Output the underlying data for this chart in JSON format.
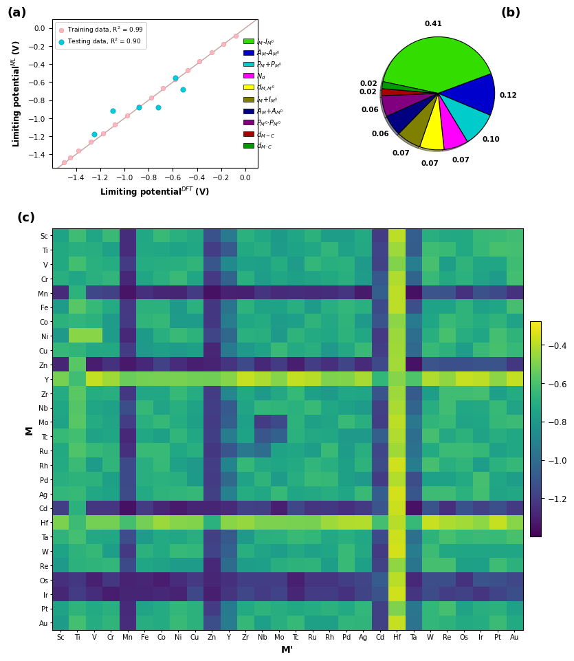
{
  "scatter_train_x": [
    -1.5,
    -1.45,
    -1.38,
    -1.28,
    -1.18,
    -1.08,
    -0.98,
    -0.88,
    -0.78,
    -0.68,
    -0.58,
    -0.48,
    -0.38,
    -0.28,
    -0.18,
    -0.08
  ],
  "scatter_train_y": [
    -1.49,
    -1.44,
    -1.36,
    -1.26,
    -1.17,
    -1.07,
    -0.97,
    -0.87,
    -0.77,
    -0.67,
    -0.57,
    -0.47,
    -0.37,
    -0.27,
    -0.18,
    -0.09
  ],
  "scatter_test_x": [
    -1.25,
    -1.1,
    -0.88,
    -0.72,
    -0.58,
    -0.52
  ],
  "scatter_test_y": [
    -1.18,
    -0.92,
    -0.88,
    -0.88,
    -0.55,
    -0.68
  ],
  "scatter_xlim": [
    -1.6,
    0.1
  ],
  "scatter_ylim": [
    -1.55,
    0.1
  ],
  "scatter_xticks": [
    -1.4,
    -1.2,
    -1.0,
    -0.8,
    -0.6,
    -0.4,
    -0.2,
    0.0
  ],
  "scatter_yticks": [
    -1.4,
    -1.2,
    -1.0,
    -0.8,
    -0.6,
    -0.4,
    -0.2,
    0.0
  ],
  "pie_values": [
    0.41,
    0.12,
    0.1,
    0.07,
    0.07,
    0.07,
    0.06,
    0.06,
    0.02,
    0.02
  ],
  "pie_colors": [
    "#33dd00",
    "#0000cc",
    "#00cccc",
    "#ff00ff",
    "#ffff00",
    "#808000",
    "#000080",
    "#800080",
    "#aa0000",
    "#009900"
  ],
  "metals": [
    "Sc",
    "Ti",
    "V",
    "Cr",
    "Mn",
    "Fe",
    "Co",
    "Ni",
    "Cu",
    "Zn",
    "Y",
    "Zr",
    "Nb",
    "Mo",
    "Tc",
    "Ru",
    "Rh",
    "Pd",
    "Ag",
    "Cd",
    "Hf",
    "Ta",
    "W",
    "Re",
    "Os",
    "Ir",
    "Pt",
    "Au"
  ],
  "colorbar_ticks": [
    -1.2,
    -1.0,
    -0.8,
    -0.6,
    -0.4
  ],
  "heatmap_vmin": -1.4,
  "heatmap_vmax": -0.28,
  "background_color": "#ffffff"
}
